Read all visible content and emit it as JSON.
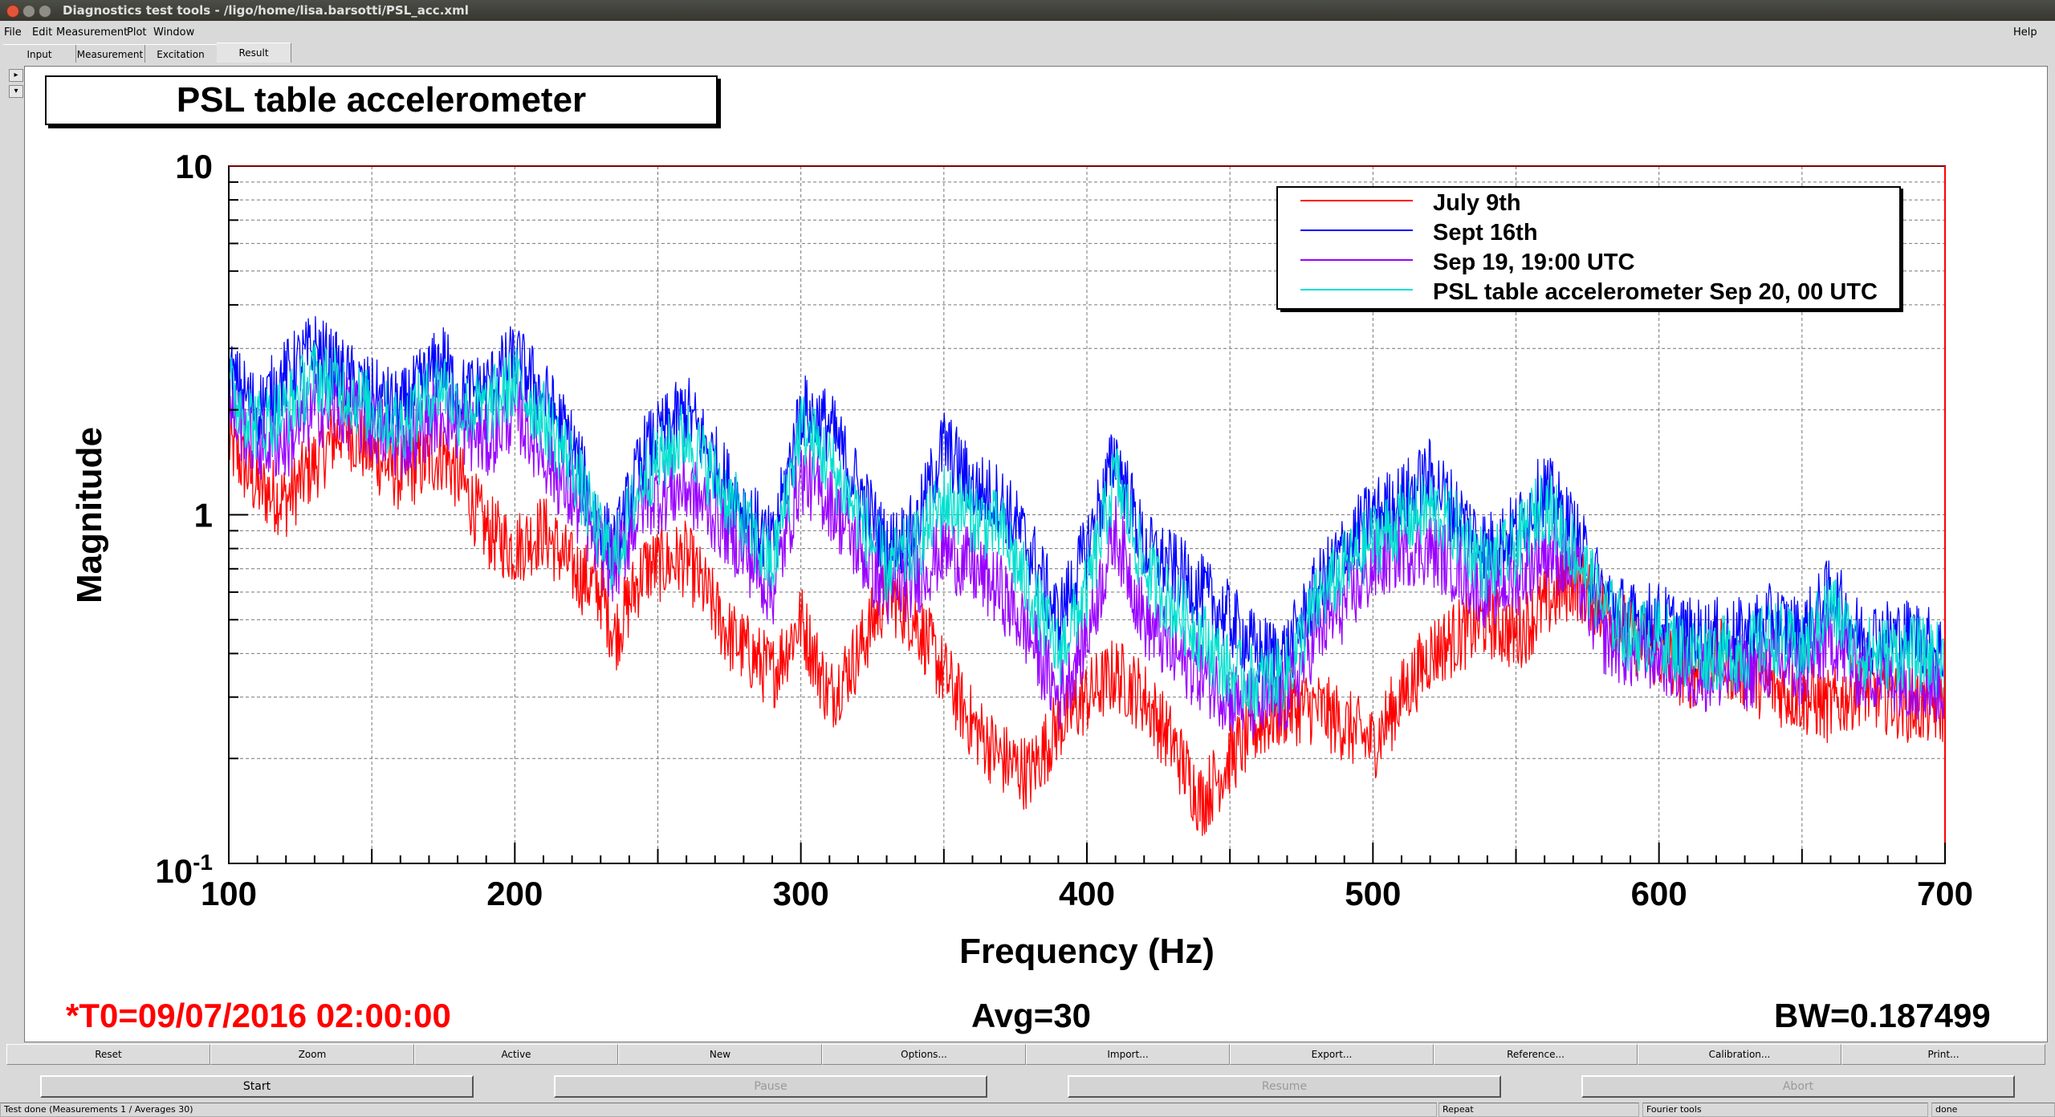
{
  "window": {
    "title": "Diagnostics test tools - /ligo/home/lisa.barsotti/PSL_acc.xml"
  },
  "menu": {
    "file": "File",
    "edit": "Edit",
    "measurement": "Measurement",
    "plot": "Plot",
    "window": "Window",
    "help": "Help"
  },
  "tabs": [
    {
      "label": "Input"
    },
    {
      "label": "Measurement"
    },
    {
      "label": "Excitation"
    },
    {
      "label": "Result"
    }
  ],
  "active_tab": "Result",
  "colors": {
    "july9": "#ff0000",
    "sept16": "#0000ff",
    "sep19": "#9900ff",
    "sep20": "#00e0d0",
    "status_red": "#ff0000"
  },
  "plot": {
    "title": "PSL table accelerometer",
    "ylabel": "Magnitude",
    "xlabel": "Frequency (Hz)",
    "t0": "*T0=09/07/2016 02:00:00",
    "avg": "Avg=30",
    "bw": "BW=0.187499"
  },
  "chart_data": {
    "type": "line",
    "title": "PSL table accelerometer",
    "xlabel": "Frequency (Hz)",
    "ylabel": "Magnitude",
    "xlim": [
      100,
      700
    ],
    "ylim": [
      0.1,
      10
    ],
    "yscale": "log",
    "grid": true,
    "legend_position": "top-right",
    "x_ticks": [
      "100",
      "200",
      "300",
      "400",
      "500",
      "600",
      "700"
    ],
    "y_ticks": [
      "10",
      "1",
      "10-1"
    ],
    "series": [
      {
        "name": "July 9th",
        "color": "#ff0000",
        "x": [
          100,
          110,
          120,
          130,
          140,
          150,
          160,
          175,
          180,
          190,
          200,
          210,
          220,
          230,
          235,
          245,
          260,
          275,
          290,
          300,
          310,
          320,
          330,
          340,
          350,
          360,
          370,
          380,
          390,
          400,
          410,
          420,
          430,
          440,
          450,
          460,
          470,
          480,
          490,
          500,
          510,
          520,
          530,
          540,
          550,
          560,
          570,
          580,
          590,
          600,
          610,
          620,
          630,
          640,
          650,
          660,
          670,
          680,
          690,
          700
        ],
        "y": [
          1.6,
          1.2,
          1.1,
          1.4,
          1.8,
          1.5,
          1.3,
          1.5,
          1.3,
          0.9,
          0.8,
          0.9,
          0.7,
          0.6,
          0.45,
          0.7,
          0.75,
          0.45,
          0.35,
          0.5,
          0.3,
          0.4,
          0.6,
          0.5,
          0.35,
          0.25,
          0.2,
          0.18,
          0.25,
          0.3,
          0.35,
          0.3,
          0.22,
          0.15,
          0.2,
          0.25,
          0.28,
          0.28,
          0.25,
          0.22,
          0.3,
          0.4,
          0.45,
          0.5,
          0.45,
          0.55,
          0.65,
          0.55,
          0.45,
          0.4,
          0.35,
          0.4,
          0.35,
          0.32,
          0.3,
          0.28,
          0.32,
          0.3,
          0.28,
          0.28
        ]
      },
      {
        "name": "Sept 16th",
        "color": "#0000ff",
        "x": [
          100,
          110,
          120,
          130,
          140,
          150,
          160,
          175,
          180,
          190,
          200,
          210,
          220,
          230,
          235,
          245,
          260,
          275,
          290,
          300,
          310,
          320,
          330,
          340,
          350,
          360,
          370,
          380,
          390,
          400,
          410,
          420,
          430,
          440,
          450,
          460,
          470,
          480,
          490,
          500,
          510,
          520,
          530,
          540,
          550,
          560,
          570,
          580,
          590,
          600,
          610,
          620,
          630,
          640,
          650,
          660,
          670,
          680,
          690,
          700
        ],
        "y": [
          2.5,
          2.0,
          2.5,
          3.0,
          2.5,
          2.2,
          2.0,
          2.8,
          2.2,
          2.3,
          2.8,
          2.2,
          1.6,
          0.9,
          0.8,
          1.5,
          2.0,
          1.2,
          0.8,
          2.0,
          1.8,
          1.2,
          0.8,
          0.9,
          1.6,
          1.2,
          1.1,
          0.8,
          0.5,
          0.8,
          1.5,
          0.8,
          0.7,
          0.6,
          0.5,
          0.4,
          0.4,
          0.6,
          0.8,
          1.0,
          1.1,
          1.3,
          1.0,
          0.8,
          0.9,
          1.2,
          0.9,
          0.6,
          0.5,
          0.5,
          0.45,
          0.45,
          0.45,
          0.5,
          0.45,
          0.6,
          0.45,
          0.45,
          0.45,
          0.4
        ]
      },
      {
        "name": "Sep 19, 19:00 UTC",
        "color": "#9900ff",
        "x": [
          100,
          110,
          120,
          130,
          140,
          150,
          160,
          175,
          180,
          190,
          200,
          210,
          220,
          230,
          235,
          245,
          260,
          275,
          290,
          300,
          310,
          320,
          330,
          340,
          350,
          360,
          370,
          380,
          390,
          400,
          410,
          420,
          430,
          440,
          450,
          460,
          470,
          480,
          490,
          500,
          510,
          520,
          530,
          540,
          550,
          560,
          570,
          580,
          590,
          600,
          610,
          620,
          630,
          640,
          650,
          660,
          670,
          680,
          690,
          700
        ],
        "y": [
          2.0,
          1.6,
          1.6,
          2.0,
          2.0,
          1.8,
          1.6,
          2.0,
          1.8,
          1.6,
          2.0,
          1.5,
          1.1,
          0.8,
          0.7,
          1.1,
          1.2,
          0.9,
          0.6,
          1.3,
          1.1,
          0.8,
          0.6,
          0.65,
          0.8,
          0.7,
          0.6,
          0.45,
          0.3,
          0.45,
          0.9,
          0.5,
          0.4,
          0.35,
          0.3,
          0.28,
          0.3,
          0.45,
          0.55,
          0.7,
          0.8,
          0.8,
          0.7,
          0.6,
          0.65,
          0.8,
          0.7,
          0.45,
          0.4,
          0.4,
          0.35,
          0.35,
          0.35,
          0.38,
          0.35,
          0.45,
          0.35,
          0.35,
          0.33,
          0.32
        ]
      },
      {
        "name": "PSL table accelerometer Sep 20, 00 UTC",
        "color": "#00e0d0",
        "x": [
          100,
          110,
          120,
          130,
          140,
          150,
          160,
          175,
          180,
          190,
          200,
          210,
          220,
          230,
          235,
          245,
          260,
          275,
          290,
          300,
          310,
          320,
          330,
          340,
          350,
          360,
          370,
          380,
          390,
          400,
          410,
          420,
          430,
          440,
          450,
          460,
          470,
          480,
          490,
          500,
          510,
          520,
          530,
          540,
          550,
          560,
          570,
          580,
          590,
          600,
          610,
          620,
          630,
          640,
          650,
          660,
          670,
          680,
          690,
          700
        ],
        "y": [
          2.3,
          1.8,
          2.0,
          2.5,
          2.3,
          2.0,
          1.8,
          2.4,
          2.0,
          2.0,
          2.4,
          1.9,
          1.4,
          0.85,
          0.75,
          1.3,
          1.7,
          1.1,
          0.7,
          1.8,
          1.4,
          1.0,
          0.7,
          0.8,
          1.1,
          1.0,
          0.9,
          0.6,
          0.4,
          0.6,
          1.3,
          0.7,
          0.55,
          0.45,
          0.35,
          0.33,
          0.35,
          0.55,
          0.7,
          0.85,
          0.95,
          1.05,
          0.9,
          0.7,
          0.8,
          1.1,
          0.8,
          0.55,
          0.45,
          0.45,
          0.4,
          0.4,
          0.4,
          0.45,
          0.4,
          0.55,
          0.4,
          0.4,
          0.4,
          0.38
        ]
      }
    ]
  },
  "buttons_row1": [
    {
      "label": "Reset"
    },
    {
      "label": "Zoom"
    },
    {
      "label": "Active"
    },
    {
      "label": "New"
    },
    {
      "label": "Options..."
    },
    {
      "label": "Import..."
    },
    {
      "label": "Export..."
    },
    {
      "label": "Reference..."
    },
    {
      "label": "Calibration..."
    },
    {
      "label": "Print..."
    }
  ],
  "buttons_row2": [
    {
      "label": "Start",
      "enabled": true
    },
    {
      "label": "Pause",
      "enabled": false
    },
    {
      "label": "Resume",
      "enabled": false
    },
    {
      "label": "Abort",
      "enabled": false
    }
  ],
  "statusbar": {
    "main": "Test done (Measurements 1 / Averages 30)",
    "repeat": "Repeat",
    "mode": "Fourier tools",
    "state": "done"
  }
}
